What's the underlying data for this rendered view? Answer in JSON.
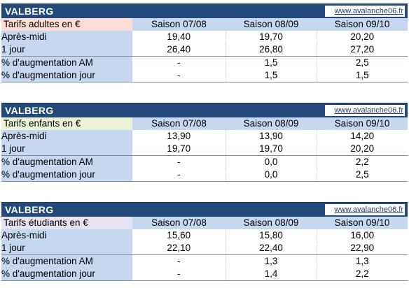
{
  "link_color": "#2a3f7a",
  "header_color": "#244a7c",
  "label_bg_color": "#c6d8f0",
  "blocks": [
    {
      "title": "VALBERG",
      "site": "www.avalanche06.fr",
      "category_label": "Tarifs adultes en €",
      "category_color": "#fbdcd6",
      "seasons": [
        "Saison 07/08",
        "Saison 08/09",
        "Saison 09/10"
      ],
      "rows": [
        {
          "label": "Après-midi",
          "values": [
            "19,40",
            "19,70",
            "20,20"
          ]
        },
        {
          "label": "1 jour",
          "values": [
            "26,40",
            "26,80",
            "27,20"
          ]
        },
        {
          "label": "% d'augmentation AM",
          "values": [
            "-",
            "1,5",
            "2,5"
          ]
        },
        {
          "label": "% d'augmentation jour",
          "values": [
            "-",
            "1,5",
            "1,5"
          ]
        }
      ]
    },
    {
      "title": "VALBERG",
      "site": "www.avalanche06.fr",
      "category_label": "Tarifs enfants en €",
      "category_color": "#ebf2d6",
      "seasons": [
        "Saison 07/08",
        "Saison 08/09",
        "Saison 09/10"
      ],
      "rows": [
        {
          "label": "Après-midi",
          "values": [
            "13,90",
            "13,90",
            "14,20"
          ]
        },
        {
          "label": "1 jour",
          "values": [
            "19,70",
            "19,70",
            "20,20"
          ]
        },
        {
          "label": "% d'augmentation AM",
          "values": [
            "-",
            "0,0",
            "2,2"
          ]
        },
        {
          "label": "% d'augmentation jour",
          "values": [
            "-",
            "0,0",
            "2,5"
          ]
        }
      ]
    },
    {
      "title": "VALBERG",
      "site": "www.avalanche06.fr",
      "category_label": "Tarifs étudiants en €",
      "category_color": "#e6e2f1",
      "seasons": [
        "Saison 07/08",
        "Saison 08/09",
        "Saison 09/10"
      ],
      "rows": [
        {
          "label": "Après-midi",
          "values": [
            "15,60",
            "15,80",
            "16,00"
          ]
        },
        {
          "label": "1 jour",
          "values": [
            "22,10",
            "22,40",
            "22,90"
          ]
        },
        {
          "label": "% d'augmentation AM",
          "values": [
            "-",
            "1,3",
            "1,3"
          ]
        },
        {
          "label": "% d'augmentation jour",
          "values": [
            "-",
            "1,4",
            "2,2"
          ]
        }
      ]
    }
  ]
}
